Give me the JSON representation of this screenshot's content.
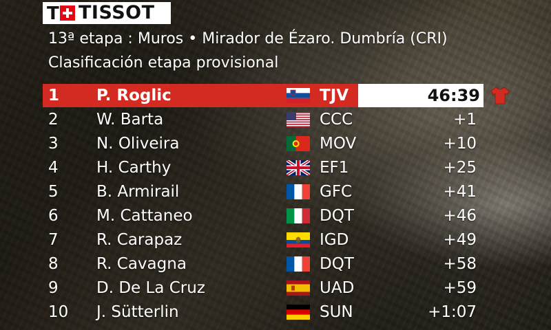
{
  "brand": {
    "logo_letter": "T",
    "logo_word": "TISSOT",
    "accent_color": "#d32b22"
  },
  "header": {
    "stage_line": "13ª etapa : Muros • Mirador de Ézaro. Dumbría (CRI)",
    "classification_line": "Clasificación etapa provisional"
  },
  "standings": [
    {
      "pos": "1",
      "name": "P. Roglic",
      "flag": "slovenia-flag-icon",
      "team": "TJV",
      "time": "46:39",
      "leader_icon": "red-jersey-icon"
    },
    {
      "pos": "2",
      "name": "W. Barta",
      "flag": "usa-flag-icon",
      "team": "CCC",
      "time": "+1"
    },
    {
      "pos": "3",
      "name": "N. Oliveira",
      "flag": "portugal-flag-icon",
      "team": "MOV",
      "time": "+10"
    },
    {
      "pos": "4",
      "name": "H. Carthy",
      "flag": "uk-flag-icon",
      "team": "EF1",
      "time": "+25"
    },
    {
      "pos": "5",
      "name": "B. Armirail",
      "flag": "france-flag-icon",
      "team": "GFC",
      "time": "+41"
    },
    {
      "pos": "6",
      "name": "M. Cattaneo",
      "flag": "italy-flag-icon",
      "team": "DQT",
      "time": "+46"
    },
    {
      "pos": "7",
      "name": "R. Carapaz",
      "flag": "ecuador-flag-icon",
      "team": "IGD",
      "time": "+49"
    },
    {
      "pos": "8",
      "name": "R. Cavagna",
      "flag": "france-flag-icon",
      "team": "DQT",
      "time": "+58"
    },
    {
      "pos": "9",
      "name": "D. De La Cruz",
      "flag": "spain-flag-icon",
      "team": "UAD",
      "time": "+59"
    },
    {
      "pos": "10",
      "name": "J. Sütterlin",
      "flag": "germany-flag-icon",
      "team": "SUN",
      "time": "+1:07"
    }
  ]
}
